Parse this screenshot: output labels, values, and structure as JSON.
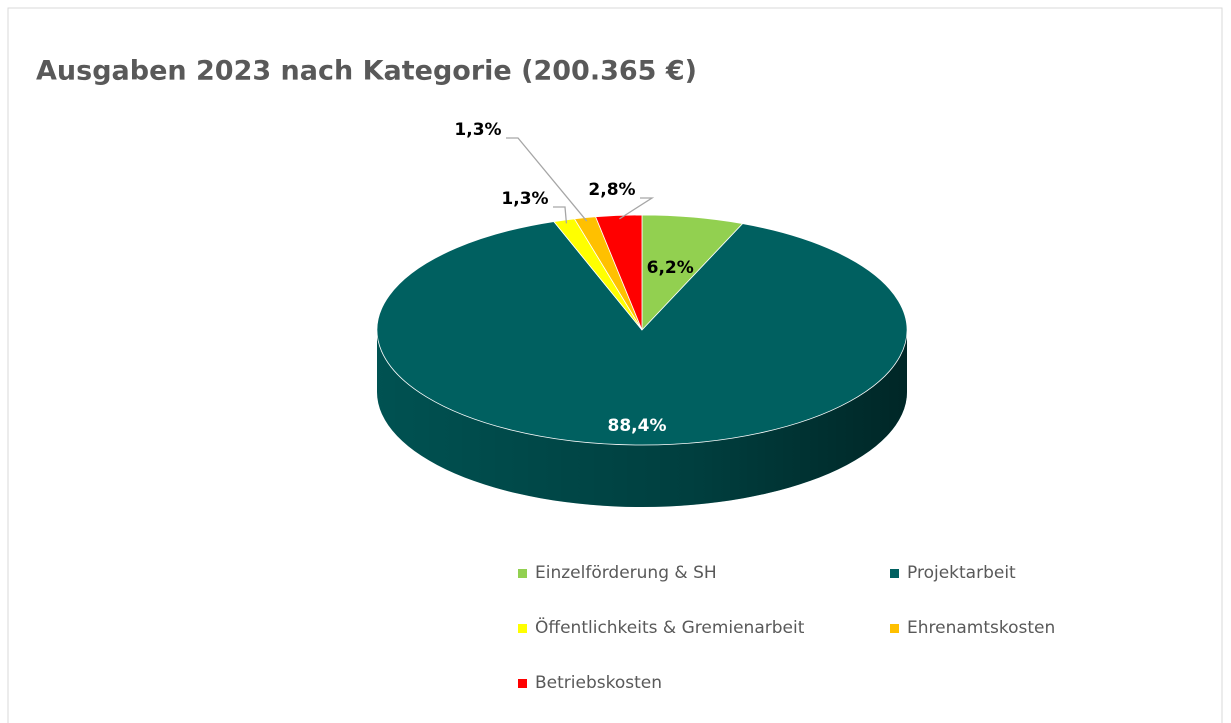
{
  "chart_data": {
    "type": "pie3d",
    "title": "Ausgaben 2023 nach Kategorie (200.365 €)",
    "categories": [
      "Einzelförderung & SH",
      "Projektarbeit",
      "Öffentlichkeits & Gremienarbeit",
      "Ehrenamtskosten",
      "Betriebskosten"
    ],
    "values": [
      6.2,
      88.4,
      1.3,
      1.3,
      2.8
    ],
    "value_labels": [
      "6,2%",
      "88,4%",
      "1,3%",
      "1,3%",
      "2,8%"
    ],
    "colors": [
      "#92d050",
      "#006060",
      "#ffff00",
      "#ffc000",
      "#ff0000"
    ],
    "legend": "bottom"
  }
}
